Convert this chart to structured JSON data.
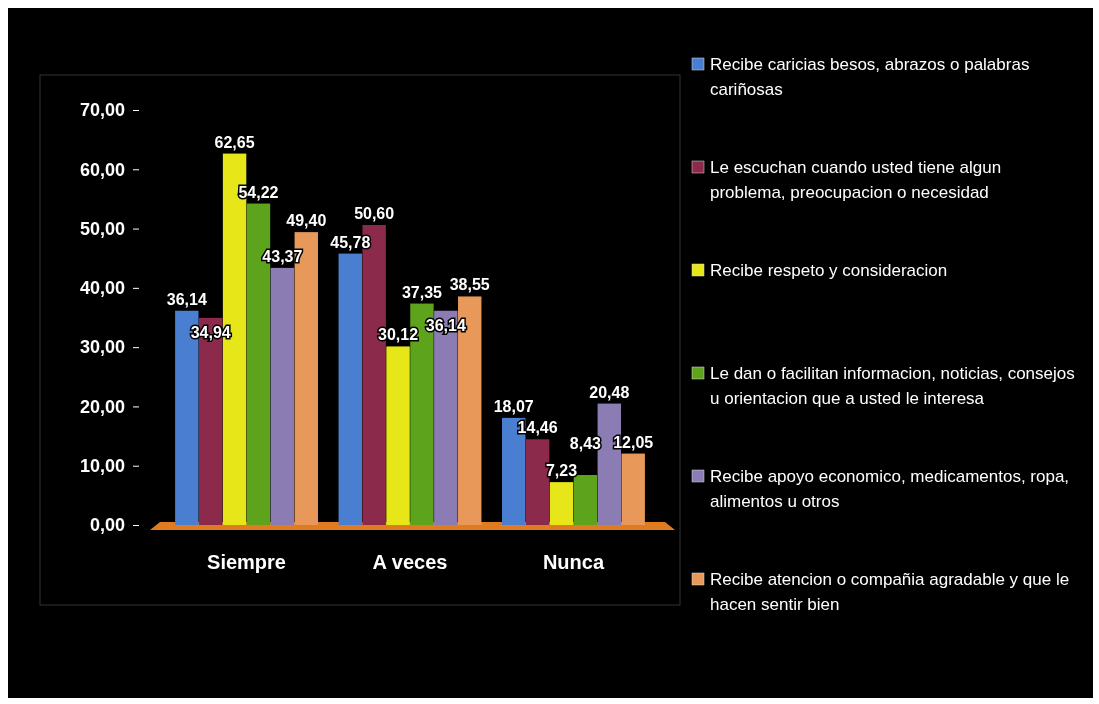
{
  "chart_data": {
    "type": "bar",
    "categories": [
      "Siempre",
      "A veces",
      "Nunca"
    ],
    "series": [
      {
        "name": "Recibe caricias besos, abrazos o palabras cariñosas",
        "color": "#4a7ed0",
        "values": [
          36.14,
          45.78,
          18.07
        ],
        "value_labels": [
          "36,14",
          "45,78",
          "18,07"
        ]
      },
      {
        "name": "Le escuchan cuando usted tiene algun problema, preocupacion o necesidad",
        "color": "#8c2a4c",
        "values": [
          34.94,
          50.6,
          14.46
        ],
        "value_labels": [
          "34,94",
          "50,60",
          "14,46"
        ]
      },
      {
        "name": "Recibe respeto y consideracion",
        "color": "#e6e619",
        "values": [
          62.65,
          30.12,
          7.23
        ],
        "value_labels": [
          "62,65",
          "30,12",
          "7,23"
        ]
      },
      {
        "name": "Le dan o facilitan informacion, noticias, consejos u orientacion que a usted le interesa",
        "color": "#5ea31c",
        "values": [
          54.22,
          37.35,
          8.43
        ],
        "value_labels": [
          "54,22",
          "37,35",
          "8,43"
        ]
      },
      {
        "name": "Recibe apoyo economico, medicamentos, ropa, alimentos u otros",
        "color": "#8c7cb4",
        "values": [
          43.37,
          36.14,
          20.48
        ],
        "value_labels": [
          "43,37",
          "36,14",
          "20,48"
        ]
      },
      {
        "name": "Recibe atencion o compañia agradable y que le hacen sentir bien",
        "color": "#e8995a",
        "values": [
          49.4,
          38.55,
          12.05
        ],
        "value_labels": [
          "49,40",
          "38,55",
          "12,05"
        ]
      }
    ],
    "ylim": [
      0,
      70
    ],
    "yticks": [
      {
        "value": 0,
        "label": "0,00"
      },
      {
        "value": 10,
        "label": "10,00"
      },
      {
        "value": 20,
        "label": "20,00"
      },
      {
        "value": 30,
        "label": "30,00"
      },
      {
        "value": 40,
        "label": "40,00"
      },
      {
        "value": 50,
        "label": "50,00"
      },
      {
        "value": 60,
        "label": "60,00"
      },
      {
        "value": 70,
        "label": "70,00"
      }
    ],
    "grid": false,
    "legend": "right"
  }
}
